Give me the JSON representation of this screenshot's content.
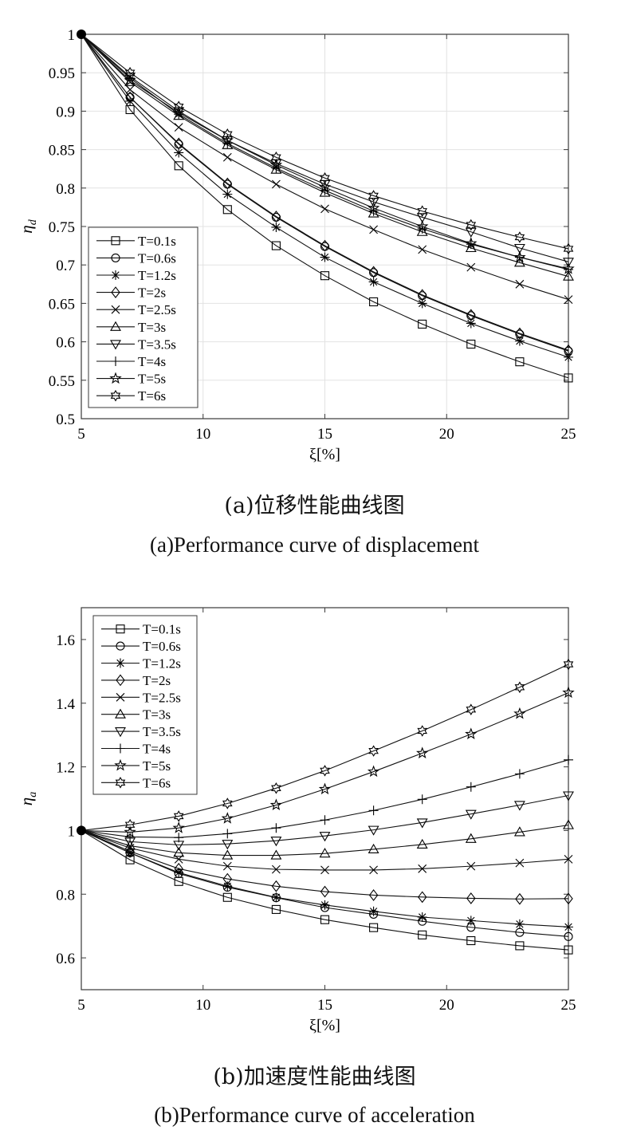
{
  "chart_data": [
    {
      "type": "line",
      "panel": "a",
      "xlabel": "ξ[%]",
      "ylabel": "ηd",
      "ylabel_main": "η",
      "ylabel_sub": "d",
      "xlim": [
        5,
        25
      ],
      "ylim": [
        0.5,
        1
      ],
      "grid": true,
      "legend_position": "bottom-left",
      "x_ticks": [
        5,
        10,
        15,
        20,
        25
      ],
      "y_ticks": [
        0.5,
        0.55,
        0.6,
        0.65,
        0.7,
        0.75,
        0.8,
        0.85,
        0.9,
        0.95,
        1
      ],
      "x": [
        5,
        7,
        9,
        11,
        13,
        15,
        17,
        19,
        21,
        23,
        25
      ],
      "series": [
        {
          "name": "T=0.1s",
          "marker": "square",
          "values": [
            1,
            0.902,
            0.829,
            0.772,
            0.725,
            0.686,
            0.652,
            0.623,
            0.597,
            0.574,
            0.553
          ]
        },
        {
          "name": "T=0.6s",
          "marker": "circle",
          "values": [
            1,
            0.918,
            0.857,
            0.805,
            0.762,
            0.724,
            0.69,
            0.66,
            0.634,
            0.61,
            0.588
          ]
        },
        {
          "name": "T=1.2s",
          "marker": "asterisk",
          "values": [
            1,
            0.913,
            0.846,
            0.792,
            0.749,
            0.71,
            0.678,
            0.65,
            0.624,
            0.601,
            0.58
          ]
        },
        {
          "name": "T=2s",
          "marker": "diamond",
          "values": [
            1,
            0.918,
            0.858,
            0.806,
            0.763,
            0.725,
            0.691,
            0.661,
            0.635,
            0.611,
            0.589
          ]
        },
        {
          "name": "T=2.5s",
          "marker": "x",
          "values": [
            1,
            0.928,
            0.879,
            0.84,
            0.805,
            0.773,
            0.746,
            0.72,
            0.697,
            0.675,
            0.655
          ]
        },
        {
          "name": "T=3s",
          "marker": "triangle-up",
          "values": [
            1,
            0.938,
            0.894,
            0.856,
            0.824,
            0.794,
            0.767,
            0.743,
            0.722,
            0.703,
            0.685
          ]
        },
        {
          "name": "T=3.5s",
          "marker": "triangle-down",
          "values": [
            1,
            0.945,
            0.9,
            0.862,
            0.832,
            0.805,
            0.782,
            0.762,
            0.743,
            0.722,
            0.704
          ]
        },
        {
          "name": "T=4s",
          "marker": "plus",
          "values": [
            1,
            0.943,
            0.896,
            0.858,
            0.826,
            0.797,
            0.77,
            0.747,
            0.727,
            0.71,
            0.694
          ]
        },
        {
          "name": "T=5s",
          "marker": "star",
          "values": [
            1,
            0.94,
            0.898,
            0.862,
            0.83,
            0.801,
            0.774,
            0.75,
            0.728,
            0.71,
            0.695
          ]
        },
        {
          "name": "T=6s",
          "marker": "hexagram",
          "values": [
            1,
            0.95,
            0.906,
            0.87,
            0.84,
            0.813,
            0.79,
            0.77,
            0.752,
            0.736,
            0.721
          ]
        }
      ]
    },
    {
      "type": "line",
      "panel": "b",
      "xlabel": "ξ[%]",
      "ylabel": "ηa",
      "ylabel_main": "η",
      "ylabel_sub": "a",
      "xlim": [
        5,
        25
      ],
      "ylim": [
        0.5,
        1.7
      ],
      "grid": false,
      "legend_position": "top-left",
      "x_ticks": [
        5,
        10,
        15,
        20,
        25
      ],
      "y_ticks": [
        0.6,
        0.8,
        1,
        1.2,
        1.4,
        1.6
      ],
      "x": [
        5,
        7,
        9,
        11,
        13,
        15,
        17,
        19,
        21,
        23,
        25
      ],
      "series": [
        {
          "name": "T=0.1s",
          "marker": "square",
          "values": [
            1,
            0.908,
            0.84,
            0.79,
            0.752,
            0.72,
            0.695,
            0.672,
            0.654,
            0.638,
            0.625
          ]
        },
        {
          "name": "T=0.6s",
          "marker": "circle",
          "values": [
            1,
            0.93,
            0.865,
            0.822,
            0.789,
            0.758,
            0.737,
            0.715,
            0.696,
            0.68,
            0.667
          ]
        },
        {
          "name": "T=1.2s",
          "marker": "asterisk",
          "values": [
            1,
            0.93,
            0.868,
            0.825,
            0.79,
            0.766,
            0.746,
            0.728,
            0.717,
            0.706,
            0.697
          ]
        },
        {
          "name": "T=2s",
          "marker": "diamond",
          "values": [
            1,
            0.935,
            0.88,
            0.848,
            0.825,
            0.808,
            0.797,
            0.791,
            0.787,
            0.785,
            0.786
          ]
        },
        {
          "name": "T=2.5s",
          "marker": "x",
          "values": [
            1,
            0.945,
            0.91,
            0.888,
            0.878,
            0.876,
            0.876,
            0.88,
            0.888,
            0.898,
            0.91
          ]
        },
        {
          "name": "T=3s",
          "marker": "triangle-up",
          "values": [
            1,
            0.952,
            0.93,
            0.922,
            0.922,
            0.928,
            0.941,
            0.956,
            0.974,
            0.995,
            1.017
          ]
        },
        {
          "name": "T=3.5s",
          "marker": "triangle-down",
          "values": [
            1,
            0.965,
            0.955,
            0.958,
            0.968,
            0.983,
            1.002,
            1.025,
            1.052,
            1.08,
            1.11
          ]
        },
        {
          "name": "T=4s",
          "marker": "plus",
          "values": [
            1,
            0.98,
            0.978,
            0.99,
            1.008,
            1.033,
            1.063,
            1.098,
            1.137,
            1.178,
            1.222
          ]
        },
        {
          "name": "T=5s",
          "marker": "star",
          "values": [
            1,
            0.995,
            1.008,
            1.038,
            1.08,
            1.13,
            1.185,
            1.243,
            1.303,
            1.367,
            1.433
          ]
        },
        {
          "name": "T=6s",
          "marker": "hexagram",
          "values": [
            1,
            1.018,
            1.045,
            1.085,
            1.133,
            1.188,
            1.25,
            1.313,
            1.38,
            1.45,
            1.522
          ]
        }
      ]
    }
  ],
  "captions": {
    "a_cn": "(a)位移性能曲线图",
    "a_en": "(a)Performance curve of displacement",
    "b_cn": "(b)加速度性能曲线图",
    "b_en": "(b)Performance curve of acceleration"
  }
}
